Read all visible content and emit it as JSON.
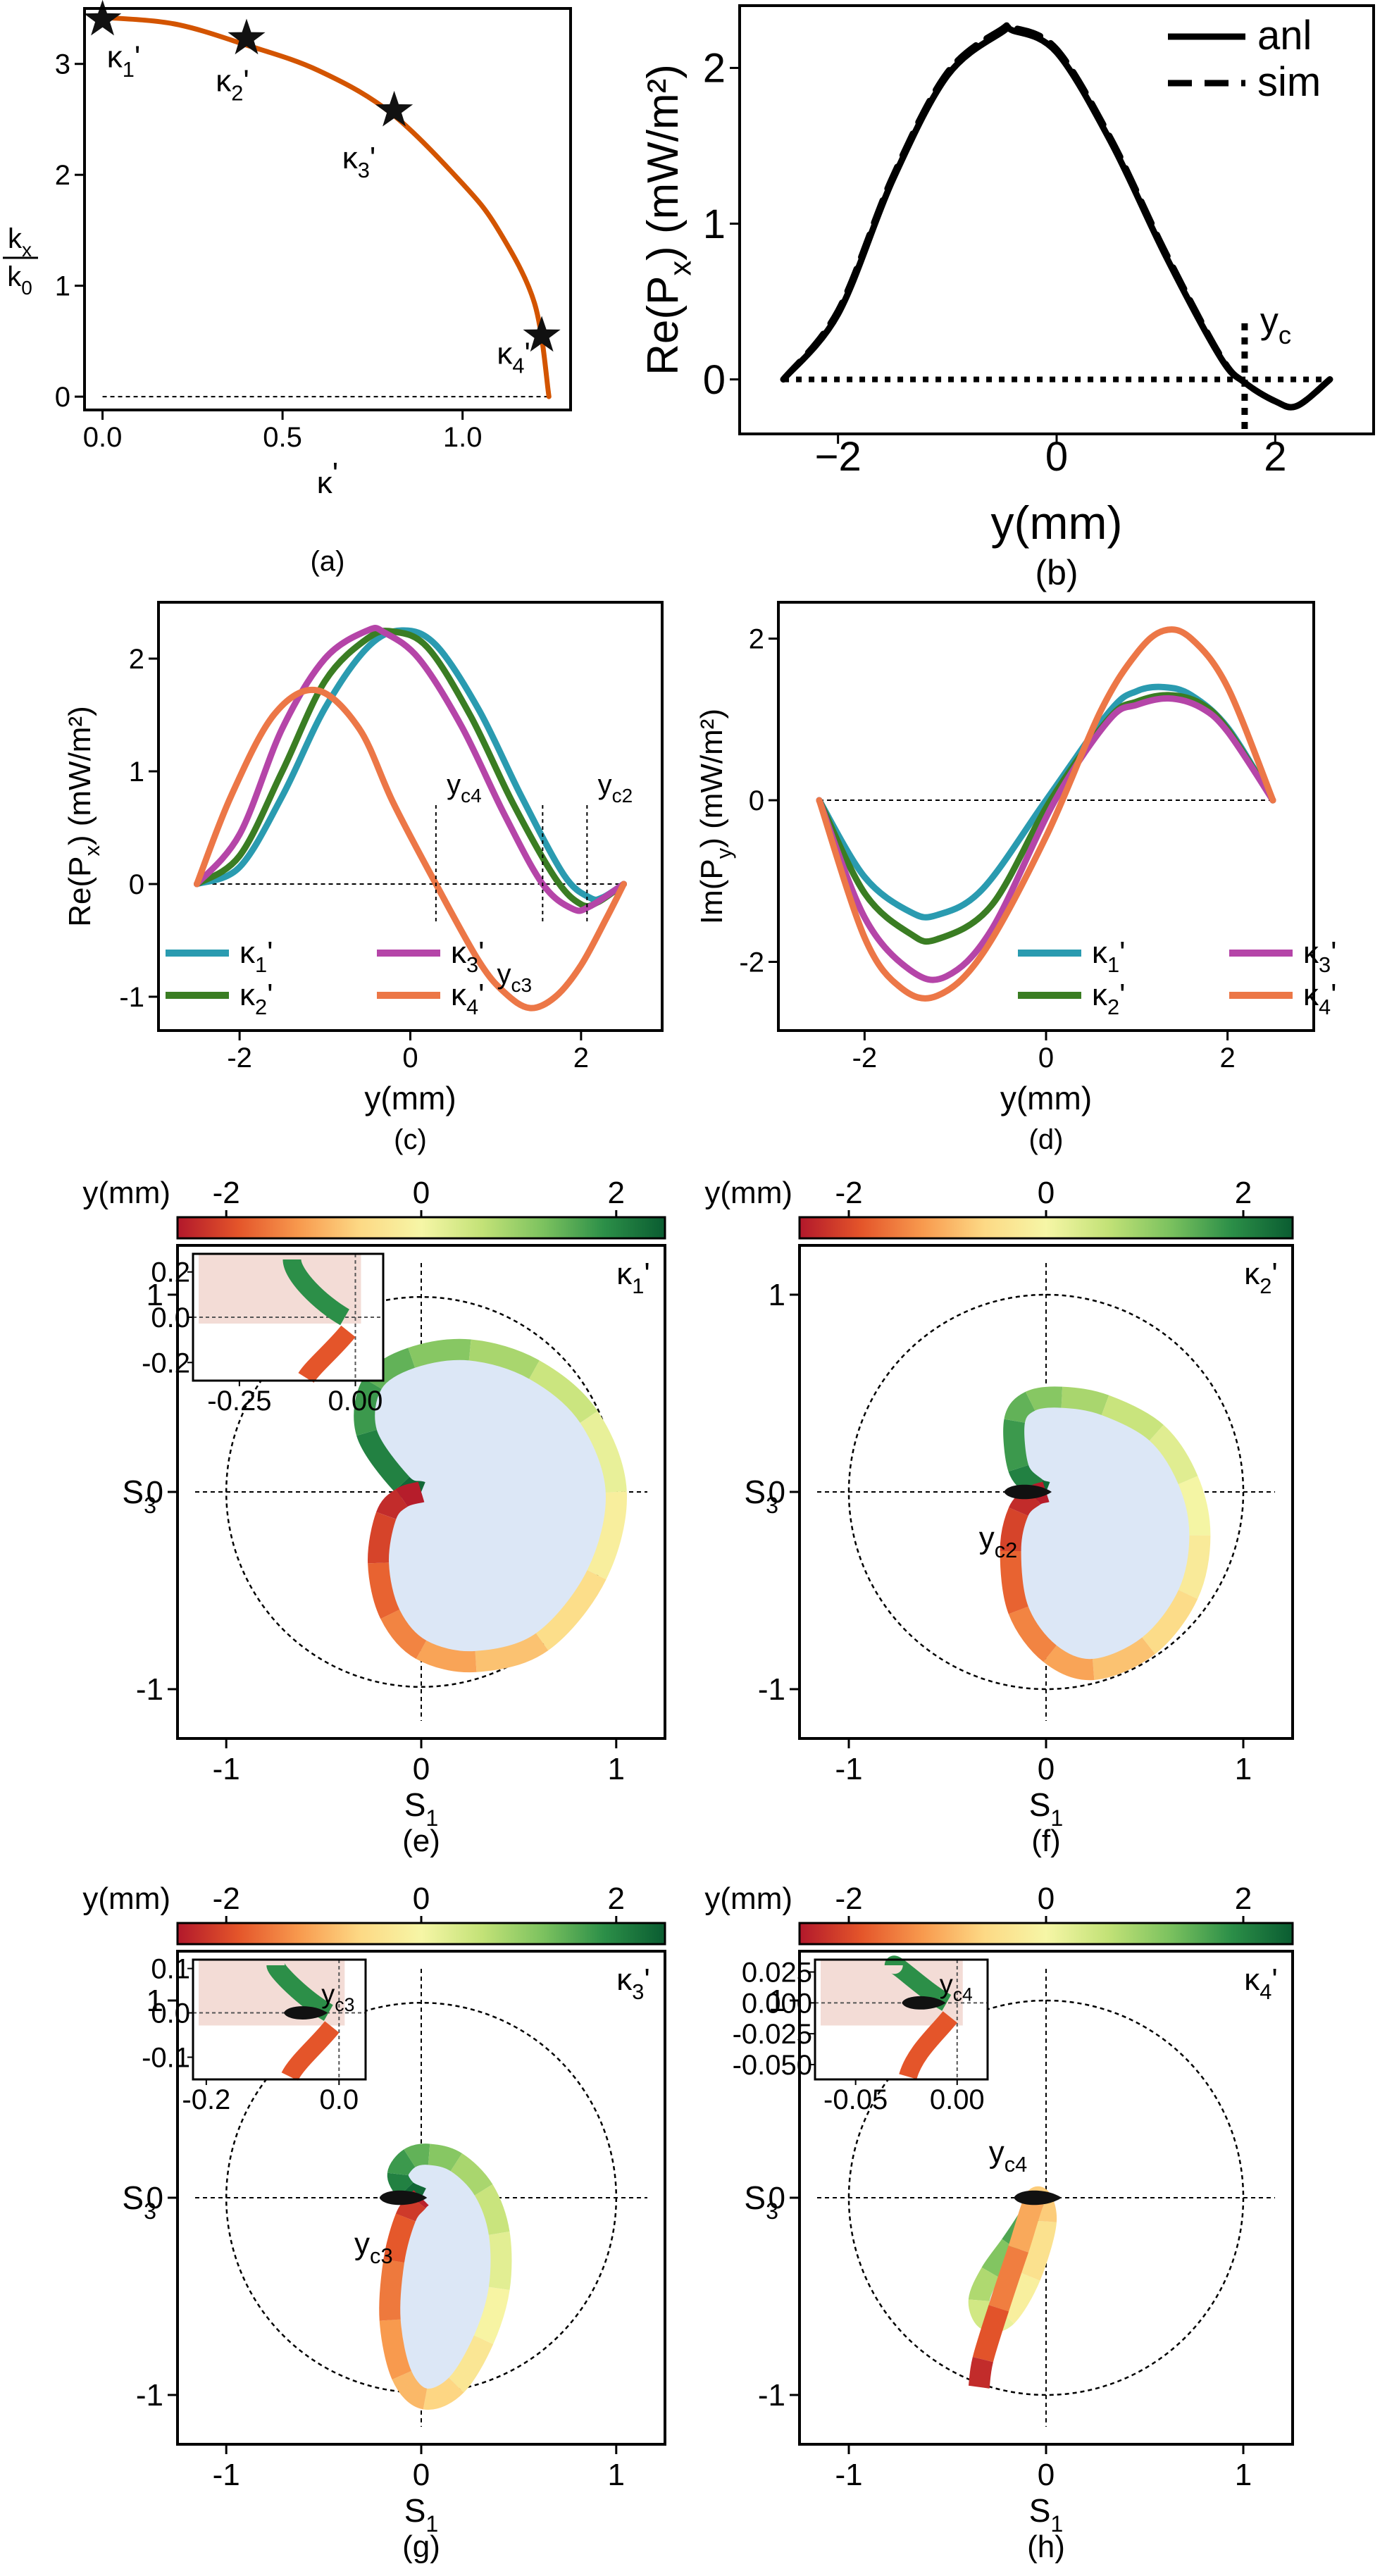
{
  "colors": {
    "orange": "#d35400",
    "teal": "#2a9bb0",
    "green": "#3a7d23",
    "magenta": "#b545a8",
    "salmon": "#ec7747",
    "fill_blue": "#dce7f6",
    "fill_pink": "#f3dcd6"
  },
  "colormap": [
    "#b2182b",
    "#e4552a",
    "#f89a4e",
    "#fdd985",
    "#f6f6a6",
    "#c3e277",
    "#7cc25f",
    "#2c8f48",
    "#0a5c31"
  ],
  "chart_data": [
    {
      "panel": "(a)",
      "type": "line",
      "xlabel": "κ'",
      "ylabel_num": "kx",
      "ylabel_den": "k0",
      "xlim": [
        -0.05,
        1.3
      ],
      "ylim": [
        -0.12,
        3.5
      ],
      "xticks": [
        0.0,
        0.5,
        1.0
      ],
      "xtick_labels": [
        "0.0",
        "0.5",
        "1.0"
      ],
      "yticks": [
        0,
        1,
        2,
        3
      ],
      "ytick_labels": [
        "0",
        "1",
        "2",
        "3"
      ],
      "curve": {
        "x": [
          0.0,
          0.2,
          0.4,
          0.6,
          0.8,
          1.0,
          1.1,
          1.2,
          1.24
        ],
        "y": [
          3.42,
          3.36,
          3.17,
          2.94,
          2.56,
          1.92,
          1.5,
          0.84,
          0.0
        ]
      },
      "markers": [
        {
          "label": "κ1'",
          "x": 0.0,
          "y": 3.4
        },
        {
          "label": "κ2'",
          "x": 0.4,
          "y": 3.23
        },
        {
          "label": "κ3'",
          "x": 0.81,
          "y": 2.58
        },
        {
          "label": "κ4'",
          "x": 1.22,
          "y": 0.55
        }
      ]
    },
    {
      "panel": "(b)",
      "type": "line",
      "xlabel": "y(mm)",
      "ylabel": "Re(Px) (mW/m²)",
      "xlim": [
        -2.9,
        2.9
      ],
      "ylim": [
        -0.35,
        2.4
      ],
      "xticks": [
        -2,
        0,
        2
      ],
      "xtick_labels": [
        "−2",
        "0",
        "2"
      ],
      "yticks": [
        0,
        1,
        2
      ],
      "ytick_labels": [
        "0",
        "1",
        "2"
      ],
      "legend": [
        {
          "name": "anl",
          "style": "solid"
        },
        {
          "name": "sim",
          "style": "dashed"
        }
      ],
      "marker_label": "yc",
      "yc": 1.72,
      "series": [
        {
          "name": "anl",
          "x": [
            -2.5,
            -2.0,
            -1.5,
            -1.0,
            -0.5,
            -0.4,
            0.0,
            0.5,
            1.0,
            1.5,
            1.72,
            2.0,
            2.2,
            2.5
          ],
          "y": [
            0.0,
            0.42,
            1.28,
            1.95,
            2.23,
            2.24,
            2.1,
            1.52,
            0.79,
            0.14,
            -0.02,
            -0.14,
            -0.17,
            0.0
          ]
        },
        {
          "name": "sim",
          "x": [
            -2.5,
            -2.0,
            -1.5,
            -1.0,
            -0.5,
            -0.4,
            0.0,
            0.5,
            1.0,
            1.5,
            1.72,
            2.0,
            2.2,
            2.5
          ],
          "y": [
            0.0,
            0.44,
            1.3,
            1.97,
            2.25,
            2.26,
            2.12,
            1.54,
            0.81,
            0.15,
            -0.02,
            -0.14,
            -0.17,
            0.0
          ]
        }
      ]
    },
    {
      "panel": "(c)",
      "type": "line",
      "xlabel": "y(mm)",
      "ylabel": "Re(Px) (mW/m²)",
      "xlim": [
        -2.95,
        2.95
      ],
      "ylim": [
        -1.3,
        2.5
      ],
      "xticks": [
        -2,
        0,
        2
      ],
      "xtick_labels": [
        "-2",
        "0",
        "2"
      ],
      "yticks": [
        -1,
        0,
        1,
        2
      ],
      "ytick_labels": [
        "-1",
        "0",
        "1",
        "2"
      ],
      "legend": [
        "κ1'",
        "κ2'",
        "κ3'",
        "κ4'"
      ],
      "annotations": [
        {
          "text": "yc4",
          "x": 0.3
        },
        {
          "text": "yc3",
          "x": 1.55
        },
        {
          "text": "yc2",
          "x": 2.07
        }
      ],
      "series": [
        {
          "name": "κ1'",
          "color": "teal",
          "x": [
            -2.5,
            -2.0,
            -1.5,
            -1.0,
            -0.5,
            -0.1,
            0.3,
            0.8,
            1.3,
            1.8,
            2.1,
            2.25,
            2.5
          ],
          "y": [
            0.0,
            0.15,
            0.78,
            1.56,
            2.1,
            2.25,
            2.12,
            1.55,
            0.78,
            0.08,
            -0.12,
            -0.12,
            0.0
          ]
        },
        {
          "name": "κ2'",
          "color": "green",
          "x": [
            -2.5,
            -2.0,
            -1.5,
            -1.0,
            -0.5,
            -0.2,
            0.2,
            0.7,
            1.2,
            1.7,
            2.0,
            2.2,
            2.5
          ],
          "y": [
            0.0,
            0.25,
            1.0,
            1.8,
            2.18,
            2.24,
            2.1,
            1.5,
            0.72,
            0.05,
            -0.18,
            -0.16,
            0.0
          ]
        },
        {
          "name": "κ3'",
          "color": "magenta",
          "x": [
            -2.5,
            -2.0,
            -1.5,
            -1.0,
            -0.5,
            -0.3,
            0.1,
            0.6,
            1.1,
            1.55,
            1.9,
            2.1,
            2.5
          ],
          "y": [
            0.0,
            0.44,
            1.38,
            2.0,
            2.25,
            2.23,
            2.0,
            1.4,
            0.62,
            0.0,
            -0.22,
            -0.2,
            0.0
          ]
        },
        {
          "name": "κ4'",
          "color": "salmon",
          "x": [
            -2.5,
            -2.1,
            -1.6,
            -1.1,
            -0.6,
            -0.2,
            0.3,
            0.8,
            1.1,
            1.4,
            1.7,
            2.0,
            2.3,
            2.5
          ],
          "y": [
            0.0,
            0.78,
            1.5,
            1.72,
            1.38,
            0.72,
            0.0,
            -0.68,
            -0.96,
            -1.1,
            -1.0,
            -0.72,
            -0.3,
            0.0
          ]
        }
      ]
    },
    {
      "panel": "(d)",
      "type": "line",
      "xlabel": "y(mm)",
      "ylabel": "Im(Py) (mW/m²)",
      "xlim": [
        -2.95,
        2.95
      ],
      "ylim": [
        -2.85,
        2.45
      ],
      "xticks": [
        -2,
        0,
        2
      ],
      "xtick_labels": [
        "-2",
        "0",
        "2"
      ],
      "yticks": [
        -2,
        0,
        2
      ],
      "ytick_labels": [
        "-2",
        "0",
        "2"
      ],
      "legend": [
        "κ1'",
        "κ2'",
        "κ3'",
        "κ4'"
      ],
      "series": [
        {
          "name": "κ1'",
          "color": "teal",
          "x": [
            -2.5,
            -2.0,
            -1.5,
            -1.2,
            -0.7,
            0.0,
            0.7,
            1.0,
            1.3,
            1.6,
            2.0,
            2.5
          ],
          "y": [
            0.0,
            -0.95,
            -1.38,
            -1.42,
            -1.1,
            0.0,
            1.1,
            1.35,
            1.4,
            1.3,
            0.9,
            0.0
          ]
        },
        {
          "name": "κ2'",
          "color": "green",
          "x": [
            -2.5,
            -2.0,
            -1.5,
            -1.2,
            -0.6,
            0.05,
            0.7,
            1.0,
            1.35,
            1.7,
            2.0,
            2.5
          ],
          "y": [
            0.0,
            -1.15,
            -1.65,
            -1.72,
            -1.3,
            0.0,
            1.02,
            1.22,
            1.3,
            1.2,
            0.88,
            0.0
          ]
        },
        {
          "name": "κ3'",
          "color": "magenta",
          "x": [
            -2.5,
            -2.0,
            -1.5,
            -1.1,
            -0.6,
            0.1,
            0.7,
            1.0,
            1.35,
            1.7,
            2.0,
            2.5
          ],
          "y": [
            0.0,
            -1.45,
            -2.1,
            -2.18,
            -1.6,
            0.0,
            1.0,
            1.18,
            1.26,
            1.15,
            0.85,
            0.0
          ]
        },
        {
          "name": "κ4'",
          "color": "salmon",
          "x": [
            -2.5,
            -2.0,
            -1.6,
            -1.2,
            -0.7,
            0.0,
            0.6,
            1.0,
            1.3,
            1.6,
            2.0,
            2.5
          ],
          "y": [
            0.0,
            -1.7,
            -2.32,
            -2.42,
            -1.9,
            -0.45,
            1.1,
            1.82,
            2.1,
            2.0,
            1.4,
            0.0
          ]
        }
      ]
    },
    {
      "panel": "(e)",
      "type": "scatter",
      "label": "κ1'",
      "xlabel": "S1",
      "ylabel": "S3",
      "xlim": [
        -1.25,
        1.25
      ],
      "ylim": [
        -1.25,
        1.25
      ],
      "ticks": [
        -1,
        0,
        1
      ],
      "tick_labels": [
        "-1",
        "0",
        "1"
      ],
      "colorbar": {
        "label": "y(mm)",
        "ticks": [
          -2,
          0,
          2
        ],
        "tick_labels": [
          "-2",
          "0",
          "2"
        ],
        "range": [
          -2.5,
          2.5
        ]
      },
      "loop": {
        "x": [
          0.0,
          -0.1,
          -0.28,
          -0.25,
          -0.05,
          0.25,
          0.58,
          0.86,
          1.0,
          0.9,
          0.62,
          0.28,
          0.0,
          -0.16,
          -0.22,
          -0.18,
          -0.1,
          0.0
        ],
        "y": [
          0.0,
          0.04,
          0.3,
          0.55,
          0.68,
          0.72,
          0.62,
          0.38,
          0.0,
          -0.42,
          -0.76,
          -0.86,
          -0.8,
          -0.62,
          -0.36,
          -0.12,
          -0.03,
          0.0
        ],
        "y_mm": [
          2.5,
          2.2,
          1.9,
          1.6,
          1.3,
          1.0,
          0.7,
          0.35,
          0.0,
          -0.35,
          -0.7,
          -1.0,
          -1.3,
          -1.6,
          -1.9,
          -2.2,
          -2.4,
          -2.5
        ]
      },
      "inset": {
        "xlim": [
          -0.35,
          0.06
        ],
        "ylim": [
          -0.28,
          0.28
        ],
        "xticks": [
          -0.25,
          0.0
        ],
        "xtick_labels": [
          "-0.25",
          "0.00"
        ],
        "yticks": [
          -0.2,
          0.0,
          0.2
        ],
        "ytick_labels": [
          "-0.2",
          "0.0",
          "0.2"
        ]
      }
    },
    {
      "panel": "(f)",
      "type": "scatter",
      "label": "κ2'",
      "xlabel": "S1",
      "ylabel": "S3",
      "xlim": [
        -1.25,
        1.25
      ],
      "ylim": [
        -1.25,
        1.25
      ],
      "ticks": [
        -1,
        0,
        1
      ],
      "tick_labels": [
        "-1",
        "0",
        "1"
      ],
      "colorbar": {
        "label": "y(mm)",
        "ticks": [
          -2,
          0,
          2
        ],
        "tick_labels": [
          "-2",
          "0",
          "2"
        ],
        "range": [
          -2.5,
          2.5
        ]
      },
      "point_label": "yc2",
      "point": [
        -0.1,
        0.0
      ],
      "loop": {
        "x": [
          0.0,
          -0.05,
          -0.14,
          -0.16,
          -0.08,
          0.08,
          0.3,
          0.56,
          0.72,
          0.78,
          0.72,
          0.52,
          0.24,
          0.02,
          -0.14,
          -0.18,
          -0.14,
          -0.06,
          0.0
        ],
        "y": [
          0.0,
          0.02,
          0.12,
          0.36,
          0.46,
          0.48,
          0.44,
          0.3,
          0.06,
          -0.22,
          -0.52,
          -0.78,
          -0.9,
          -0.82,
          -0.6,
          -0.3,
          -0.1,
          -0.02,
          0.0
        ],
        "y_mm": [
          2.5,
          2.2,
          1.9,
          1.6,
          1.3,
          1.0,
          0.7,
          0.4,
          0.15,
          -0.1,
          -0.4,
          -0.7,
          -1.0,
          -1.3,
          -1.6,
          -1.9,
          -2.2,
          -2.4,
          -2.5
        ]
      }
    },
    {
      "panel": "(g)",
      "type": "scatter",
      "label": "κ3'",
      "xlabel": "S1",
      "ylabel": "S3",
      "xlim": [
        -1.25,
        1.25
      ],
      "ylim": [
        -1.25,
        1.25
      ],
      "ticks": [
        -1,
        0,
        1
      ],
      "tick_labels": [
        "-1",
        "0",
        "1"
      ],
      "colorbar": {
        "label": "y(mm)",
        "ticks": [
          -2,
          0,
          2
        ],
        "tick_labels": [
          "-2",
          "0",
          "2"
        ],
        "range": [
          -2.5,
          2.5
        ]
      },
      "point_label": "yc3",
      "point": [
        -0.1,
        0.0
      ],
      "loop": {
        "x": [
          0.0,
          -0.08,
          -0.12,
          -0.06,
          0.04,
          0.18,
          0.32,
          0.4,
          0.4,
          0.32,
          0.18,
          0.02,
          -0.1,
          -0.16,
          -0.14,
          -0.08,
          -0.02,
          0.0
        ],
        "y": [
          0.0,
          0.04,
          0.12,
          0.2,
          0.22,
          0.18,
          0.04,
          -0.18,
          -0.46,
          -0.72,
          -0.95,
          -1.02,
          -0.9,
          -0.62,
          -0.32,
          -0.1,
          -0.02,
          0.0
        ],
        "y_mm": [
          2.5,
          2.2,
          1.9,
          1.6,
          1.3,
          1.0,
          0.7,
          0.4,
          0.1,
          -0.2,
          -0.5,
          -0.8,
          -1.1,
          -1.4,
          -1.7,
          -2.0,
          -2.3,
          -2.5
        ]
      },
      "inset": {
        "xlim": [
          -0.22,
          0.04
        ],
        "ylim": [
          -0.15,
          0.12
        ],
        "xticks": [
          -0.2,
          0.0
        ],
        "xtick_labels": [
          "-0.2",
          "0.0"
        ],
        "yticks": [
          -0.1,
          0.0,
          0.1
        ],
        "ytick_labels": [
          "-0.1",
          "0.0",
          "0.1"
        ],
        "point_label": "yc3"
      }
    },
    {
      "panel": "(h)",
      "type": "scatter",
      "label": "κ4'",
      "xlabel": "S1",
      "ylabel": "S3",
      "xlim": [
        -1.25,
        1.25
      ],
      "ylim": [
        -1.25,
        1.25
      ],
      "ticks": [
        -1,
        0,
        1
      ],
      "tick_labels": [
        "-1",
        "0",
        "1"
      ],
      "colorbar": {
        "label": "y(mm)",
        "ticks": [
          -2,
          0,
          2
        ],
        "tick_labels": [
          "-2",
          "0",
          "2"
        ],
        "range": [
          -2.5,
          2.5
        ]
      },
      "point_label": "yc4",
      "point": [
        -0.05,
        0.0
      ],
      "loop": {
        "x": [
          0.0,
          -0.04,
          -0.1,
          -0.18,
          -0.28,
          -0.34,
          -0.3,
          -0.2,
          -0.08,
          0.0,
          -0.05,
          -0.14,
          -0.24,
          -0.32,
          -0.34
        ],
        "y": [
          0.0,
          -0.02,
          -0.12,
          -0.24,
          -0.38,
          -0.52,
          -0.62,
          -0.6,
          -0.4,
          -0.12,
          0.0,
          -0.26,
          -0.56,
          -0.82,
          -0.96
        ],
        "y_mm": [
          2.5,
          2.2,
          1.8,
          1.4,
          1.0,
          0.6,
          0.3,
          0.0,
          -0.3,
          -0.6,
          -0.9,
          -1.3,
          -1.7,
          -2.1,
          -2.5
        ]
      },
      "inset": {
        "xlim": [
          -0.07,
          0.015
        ],
        "ylim": [
          -0.062,
          0.035
        ],
        "xticks": [
          -0.05,
          0.0
        ],
        "xtick_labels": [
          "-0.05",
          "0.00"
        ],
        "yticks": [
          0.025,
          0.0,
          -0.025,
          -0.05
        ],
        "ytick_labels": [
          "0.025",
          "0.000",
          "-0.025",
          "-0.050"
        ],
        "point_label": "yc4"
      }
    }
  ],
  "panel_labels": [
    "(a)",
    "(b)",
    "(c)",
    "(d)",
    "(e)",
    "(f)",
    "(g)",
    "(h)"
  ]
}
